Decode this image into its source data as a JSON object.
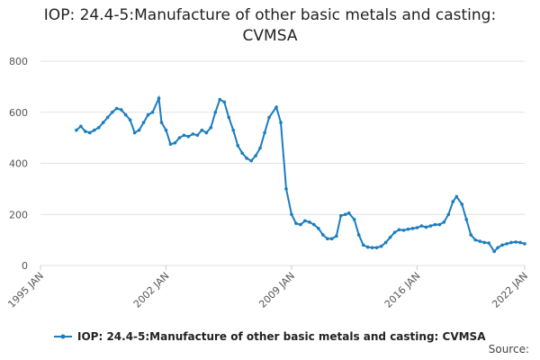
{
  "chart_data": {
    "type": "line",
    "title": "IOP: 24.4-5:Manufacture of other basic metals and casting: CVMSA",
    "x": [
      1997,
      1997.25,
      1997.5,
      1997.75,
      1998,
      1998.25,
      1998.5,
      1998.75,
      1999,
      1999.25,
      1999.5,
      1999.75,
      2000,
      2000.25,
      2000.5,
      2000.75,
      2001,
      2001.25,
      2001.6,
      2001.75,
      2002,
      2002.25,
      2002.5,
      2002.75,
      2003,
      2003.25,
      2003.5,
      2003.75,
      2004,
      2004.25,
      2004.5,
      2004.75,
      2005,
      2005.25,
      2005.5,
      2005.75,
      2006,
      2006.25,
      2006.5,
      2006.75,
      2007,
      2007.25,
      2007.5,
      2007.75,
      2008.15,
      2008.4,
      2008.7,
      2009,
      2009.25,
      2009.5,
      2009.75,
      2010,
      2010.25,
      2010.5,
      2010.75,
      2011,
      2011.25,
      2011.5,
      2011.75,
      2012,
      2012.2,
      2012.5,
      2012.75,
      2013,
      2013.25,
      2013.5,
      2013.75,
      2014,
      2014.25,
      2014.5,
      2014.75,
      2015,
      2015.25,
      2015.5,
      2015.75,
      2016,
      2016.25,
      2016.5,
      2016.75,
      2017,
      2017.25,
      2017.5,
      2017.75,
      2018,
      2018.2,
      2018.5,
      2018.75,
      2019,
      2019.25,
      2019.5,
      2019.75,
      2020,
      2020.3,
      2020.5,
      2020.75,
      2021,
      2021.25,
      2021.5,
      2021.75,
      2022
    ],
    "series": [
      {
        "name": "IOP: 24.4-5:Manufacture of other basic metals and casting: CVMSA",
        "color": "#1a7dc0",
        "values": [
          530,
          545,
          525,
          520,
          530,
          540,
          560,
          580,
          600,
          615,
          610,
          590,
          570,
          520,
          530,
          560,
          590,
          600,
          655,
          560,
          530,
          475,
          480,
          500,
          510,
          505,
          515,
          510,
          530,
          520,
          540,
          600,
          650,
          640,
          580,
          530,
          470,
          440,
          420,
          410,
          430,
          460,
          520,
          580,
          620,
          560,
          300,
          200,
          165,
          160,
          175,
          170,
          160,
          145,
          120,
          105,
          105,
          115,
          195,
          200,
          205,
          180,
          120,
          80,
          72,
          70,
          70,
          75,
          90,
          110,
          130,
          140,
          138,
          142,
          145,
          148,
          155,
          150,
          155,
          160,
          160,
          170,
          200,
          250,
          270,
          240,
          180,
          120,
          100,
          95,
          90,
          88,
          55,
          70,
          80,
          85,
          90,
          92,
          90,
          85
        ]
      }
    ],
    "xlim": [
      1995,
      2022
    ],
    "xticks": [
      {
        "value": 1995,
        "label": "1995 JAN"
      },
      {
        "value": 2002,
        "label": "2002 JAN"
      },
      {
        "value": 2009,
        "label": "2009 JAN"
      },
      {
        "value": 2016,
        "label": "2016 JAN"
      },
      {
        "value": 2022,
        "label": "2022 JAN"
      }
    ],
    "ylim": [
      0,
      800
    ],
    "yticks": [
      0,
      200,
      400,
      600,
      800
    ],
    "grid": true,
    "legend": "bottom",
    "source": "Source:"
  }
}
